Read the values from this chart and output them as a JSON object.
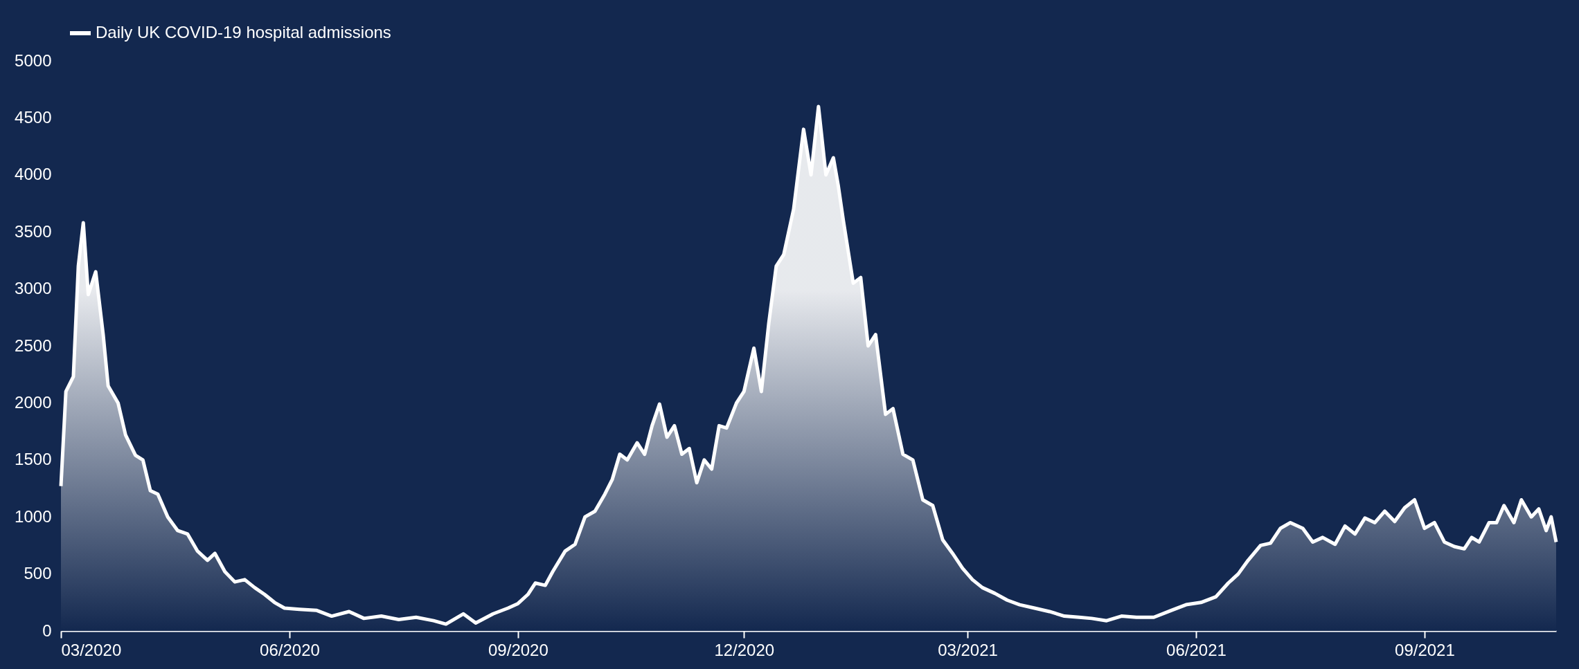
{
  "chart_data": {
    "type": "area",
    "x": [
      "2020-03-01",
      "2020-03-03",
      "2020-03-06",
      "2020-03-08",
      "2020-03-10",
      "2020-03-12",
      "2020-03-15",
      "2020-03-18",
      "2020-03-20",
      "2020-03-24",
      "2020-03-27",
      "2020-03-31",
      "2020-04-03",
      "2020-04-06",
      "2020-04-09",
      "2020-04-13",
      "2020-04-17",
      "2020-04-21",
      "2020-04-25",
      "2020-04-29",
      "2020-05-02",
      "2020-05-06",
      "2020-05-10",
      "2020-05-14",
      "2020-05-18",
      "2020-05-22",
      "2020-05-26",
      "2020-05-30",
      "2020-06-05",
      "2020-06-12",
      "2020-06-18",
      "2020-06-25",
      "2020-07-01",
      "2020-07-08",
      "2020-07-15",
      "2020-07-22",
      "2020-07-29",
      "2020-08-03",
      "2020-08-10",
      "2020-08-15",
      "2020-08-22",
      "2020-08-28",
      "2020-09-01",
      "2020-09-05",
      "2020-09-08",
      "2020-09-12",
      "2020-09-15",
      "2020-09-20",
      "2020-09-24",
      "2020-09-28",
      "2020-10-02",
      "2020-10-06",
      "2020-10-09",
      "2020-10-12",
      "2020-10-15",
      "2020-10-19",
      "2020-10-22",
      "2020-10-25",
      "2020-10-28",
      "2020-10-31",
      "2020-11-03",
      "2020-11-06",
      "2020-11-09",
      "2020-11-12",
      "2020-11-15",
      "2020-11-18",
      "2020-11-21",
      "2020-11-24",
      "2020-11-28",
      "2020-12-01",
      "2020-12-05",
      "2020-12-08",
      "2020-12-11",
      "2020-12-14",
      "2020-12-17",
      "2020-12-21",
      "2020-12-25",
      "2020-12-28",
      "2020-12-31",
      "2021-01-03",
      "2021-01-06",
      "2021-01-08",
      "2021-01-10",
      "2021-01-14",
      "2021-01-17",
      "2021-01-20",
      "2021-01-23",
      "2021-01-27",
      "2021-01-30",
      "2021-02-03",
      "2021-02-07",
      "2021-02-11",
      "2021-02-15",
      "2021-02-19",
      "2021-02-23",
      "2021-02-27",
      "2021-03-03",
      "2021-03-07",
      "2021-03-12",
      "2021-03-17",
      "2021-03-22",
      "2021-03-28",
      "2021-04-03",
      "2021-04-09",
      "2021-04-15",
      "2021-04-20",
      "2021-04-26",
      "2021-05-02",
      "2021-05-08",
      "2021-05-15",
      "2021-05-22",
      "2021-05-28",
      "2021-06-03",
      "2021-06-09",
      "2021-06-14",
      "2021-06-18",
      "2021-06-22",
      "2021-06-27",
      "2021-07-01",
      "2021-07-05",
      "2021-07-09",
      "2021-07-14",
      "2021-07-18",
      "2021-07-22",
      "2021-07-27",
      "2021-07-31",
      "2021-08-04",
      "2021-08-08",
      "2021-08-12",
      "2021-08-16",
      "2021-08-20",
      "2021-08-24",
      "2021-08-28",
      "2021-09-01",
      "2021-09-05",
      "2021-09-09",
      "2021-09-13",
      "2021-09-17",
      "2021-09-20",
      "2021-09-23",
      "2021-09-27",
      "2021-09-30",
      "2021-10-03",
      "2021-10-07",
      "2021-10-10",
      "2021-10-14",
      "2021-10-17",
      "2021-10-20",
      "2021-10-22",
      "2021-10-24"
    ],
    "series": [
      {
        "name": "Daily UK COVID-19 hospital admissions",
        "color": "#ffffff",
        "values": [
          1270,
          2100,
          2230,
          3200,
          3580,
          2950,
          3150,
          2600,
          2150,
          2000,
          1720,
          1540,
          1500,
          1230,
          1200,
          1000,
          880,
          850,
          700,
          620,
          680,
          520,
          430,
          450,
          380,
          320,
          250,
          200,
          190,
          180,
          130,
          170,
          110,
          130,
          100,
          120,
          90,
          60,
          150,
          70,
          150,
          200,
          240,
          320,
          420,
          400,
          520,
          700,
          760,
          1000,
          1050,
          1200,
          1330,
          1550,
          1500,
          1650,
          1550,
          1800,
          1990,
          1700,
          1800,
          1550,
          1600,
          1300,
          1500,
          1420,
          1800,
          1780,
          2000,
          2100,
          2480,
          2100,
          2700,
          3200,
          3300,
          3700,
          4400,
          4000,
          4600,
          4000,
          4150,
          3900,
          3600,
          3050,
          3100,
          2500,
          2600,
          1900,
          1950,
          1550,
          1500,
          1150,
          1100,
          800,
          680,
          550,
          450,
          380,
          330,
          270,
          230,
          200,
          170,
          130,
          120,
          110,
          90,
          130,
          120,
          120,
          180,
          230,
          250,
          300,
          420,
          500,
          620,
          750,
          770,
          900,
          950,
          900,
          780,
          820,
          760,
          920,
          850,
          990,
          950,
          1050,
          960,
          1080,
          1150,
          900,
          950,
          780,
          740,
          720,
          820,
          780,
          950,
          950,
          1100,
          950,
          1150,
          1000,
          1070,
          880,
          1000,
          780
        ]
      }
    ],
    "xlim": [
      "2020-03-01",
      "2021-10-24"
    ],
    "xticks": [
      {
        "value": "2020-03-01",
        "label": "03/2020"
      },
      {
        "value": "2020-06-01",
        "label": "06/2020"
      },
      {
        "value": "2020-09-01",
        "label": "09/2020"
      },
      {
        "value": "2020-12-01",
        "label": "12/2020"
      },
      {
        "value": "2021-03-01",
        "label": "03/2021"
      },
      {
        "value": "2021-06-01",
        "label": "06/2021"
      },
      {
        "value": "2021-09-01",
        "label": "09/2021"
      }
    ],
    "ylim": [
      0,
      5000
    ],
    "yticks": [
      0,
      500,
      1000,
      1500,
      2000,
      2500,
      3000,
      3500,
      4000,
      4500,
      5000
    ],
    "grid": false,
    "legend": "top",
    "line_style": "solid"
  }
}
